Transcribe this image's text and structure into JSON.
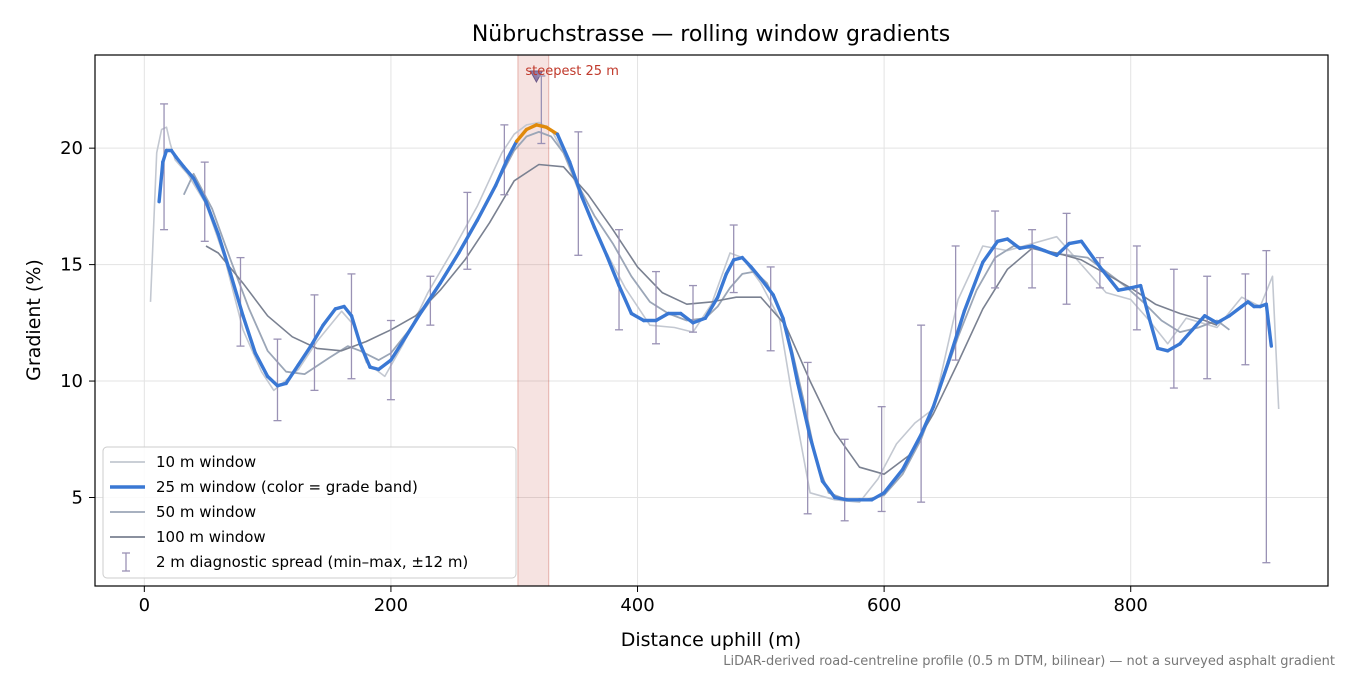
{
  "chart_data": {
    "type": "line",
    "title": "Nübruchstrasse — rolling window gradients",
    "xlabel": "Distance uphill (m)",
    "ylabel": "Gradient (%)",
    "xlim": [
      -40,
      960
    ],
    "ylim": [
      1.2,
      24.0
    ],
    "x_ticks": [
      0,
      200,
      400,
      600,
      800
    ],
    "x_tick_labels": [
      "0",
      "200",
      "400",
      "600",
      "800"
    ],
    "y_ticks": [
      5,
      10,
      15,
      20
    ],
    "y_tick_labels": [
      "5",
      "10",
      "15",
      "20"
    ],
    "grid": true,
    "legend_position": "lower-left",
    "footnote": "LiDAR-derived road-centreline profile (0.5 m DTM, bilinear) — not a surveyed asphalt gradient",
    "highlight": {
      "x_range": [
        303,
        328
      ],
      "label": "steepest 25 m",
      "marker_x": 318,
      "marker_y": 23.1
    },
    "series": [
      {
        "name": "10 m window",
        "color": "#c3c8d1",
        "x": [
          5,
          10,
          14,
          18,
          21,
          25,
          35,
          50,
          65,
          80,
          95,
          105,
          112,
          125,
          140,
          160,
          170,
          180,
          195,
          210,
          230,
          250,
          270,
          290,
          300,
          310,
          320,
          330,
          340,
          355,
          370,
          390,
          410,
          430,
          445,
          460,
          475,
          485,
          500,
          515,
          525,
          540,
          560,
          580,
          595,
          610,
          625,
          640,
          660,
          680,
          700,
          720,
          740,
          760,
          780,
          800,
          815,
          830,
          845,
          870,
          890,
          905,
          915,
          920
        ],
        "y": [
          13.4,
          19.8,
          20.8,
          20.9,
          20.2,
          19.5,
          18.9,
          17.6,
          15.3,
          12.2,
          10.4,
          9.6,
          9.9,
          10.5,
          11.7,
          13.0,
          12.4,
          10.8,
          10.2,
          11.6,
          13.8,
          15.6,
          17.5,
          19.8,
          20.6,
          21.0,
          21.1,
          20.8,
          19.8,
          17.8,
          16.0,
          14.0,
          12.4,
          12.3,
          12.1,
          13.3,
          15.5,
          15.3,
          14.2,
          12.7,
          9.5,
          5.2,
          4.9,
          4.8,
          5.8,
          7.3,
          8.2,
          8.8,
          13.5,
          15.8,
          15.6,
          15.9,
          16.2,
          15.0,
          13.8,
          13.5,
          12.6,
          11.6,
          12.7,
          12.3,
          13.6,
          13.2,
          14.5,
          8.8
        ]
      },
      {
        "name": "25 m window (color = grade band)",
        "color": "#3a78d4",
        "x": [
          12,
          15,
          18,
          22,
          26,
          32,
          40,
          50,
          60,
          70,
          80,
          90,
          100,
          108,
          115,
          125,
          135,
          145,
          155,
          162,
          168,
          175,
          183,
          190,
          200,
          212,
          225,
          240,
          255,
          270,
          285,
          295,
          302,
          310,
          318,
          326,
          335,
          345,
          355,
          365,
          375,
          385,
          395,
          405,
          415,
          425,
          435,
          445,
          455,
          465,
          472,
          478,
          485,
          492,
          500,
          510,
          518,
          525,
          530,
          540,
          550,
          560,
          570,
          580,
          590,
          600,
          615,
          630,
          640,
          652,
          665,
          680,
          692,
          700,
          710,
          720,
          730,
          740,
          750,
          760,
          775,
          790,
          800,
          808,
          815,
          822,
          830,
          840,
          850,
          860,
          870,
          880,
          890,
          895,
          900,
          905,
          910,
          914
        ],
        "y": [
          17.7,
          19.4,
          19.9,
          19.9,
          19.6,
          19.2,
          18.7,
          17.7,
          16.3,
          14.6,
          12.8,
          11.2,
          10.2,
          9.8,
          9.9,
          10.7,
          11.5,
          12.4,
          13.1,
          13.2,
          12.8,
          11.6,
          10.6,
          10.5,
          10.9,
          11.9,
          13.0,
          14.2,
          15.5,
          16.9,
          18.4,
          19.6,
          20.3,
          20.8,
          21.0,
          20.9,
          20.6,
          19.4,
          17.9,
          16.6,
          15.4,
          14.1,
          12.9,
          12.6,
          12.6,
          12.9,
          12.9,
          12.5,
          12.7,
          13.6,
          14.6,
          15.2,
          15.3,
          14.9,
          14.4,
          13.7,
          12.7,
          11.2,
          9.9,
          7.6,
          5.7,
          5.0,
          4.9,
          4.9,
          4.9,
          5.2,
          6.2,
          7.7,
          8.9,
          10.8,
          13.0,
          15.1,
          16.0,
          16.1,
          15.7,
          15.8,
          15.6,
          15.4,
          15.9,
          16.0,
          14.9,
          13.9,
          14.0,
          14.1,
          12.7,
          11.4,
          11.3,
          11.6,
          12.2,
          12.8,
          12.5,
          12.8,
          13.2,
          13.4,
          13.2,
          13.2,
          13.3,
          11.5
        ]
      },
      {
        "name": "50 m window",
        "color": "#9ba6b7",
        "x": [
          32,
          40,
          55,
          70,
          85,
          100,
          115,
          130,
          150,
          165,
          175,
          190,
          200,
          215,
          230,
          245,
          260,
          275,
          290,
          300,
          310,
          320,
          330,
          340,
          350,
          365,
          380,
          395,
          410,
          425,
          440,
          455,
          465,
          475,
          485,
          495,
          505,
          515,
          525,
          535,
          545,
          555,
          570,
          585,
          600,
          615,
          630,
          645,
          660,
          675,
          690,
          705,
          720,
          735,
          750,
          765,
          780,
          795,
          810,
          825,
          840,
          855,
          870,
          880
        ],
        "y": [
          18.0,
          18.9,
          17.4,
          15.2,
          13.1,
          11.3,
          10.4,
          10.3,
          11.0,
          11.5,
          11.3,
          10.9,
          11.2,
          12.2,
          13.3,
          14.6,
          15.9,
          17.4,
          18.9,
          19.9,
          20.5,
          20.7,
          20.5,
          19.8,
          18.6,
          17.1,
          15.9,
          14.5,
          13.4,
          12.9,
          12.6,
          12.7,
          13.2,
          14.0,
          14.6,
          14.7,
          14.2,
          13.1,
          11.4,
          9.1,
          6.6,
          5.2,
          4.9,
          4.9,
          5.1,
          6.0,
          7.5,
          9.6,
          11.9,
          13.9,
          15.3,
          15.8,
          15.7,
          15.5,
          15.4,
          15.3,
          14.7,
          14.1,
          13.4,
          12.6,
          12.1,
          12.3,
          12.6,
          12.2
        ]
      },
      {
        "name": "100 m window",
        "color": "#7a8191",
        "x": [
          50,
          60,
          80,
          100,
          120,
          140,
          160,
          180,
          200,
          220,
          240,
          260,
          280,
          300,
          320,
          340,
          360,
          380,
          400,
          420,
          440,
          460,
          480,
          500,
          520,
          540,
          560,
          580,
          600,
          620,
          640,
          660,
          680,
          700,
          720,
          740,
          760,
          780,
          800,
          820,
          840,
          860,
          870
        ],
        "y": [
          15.8,
          15.5,
          14.2,
          12.8,
          11.9,
          11.4,
          11.3,
          11.7,
          12.2,
          12.8,
          13.9,
          15.2,
          16.8,
          18.6,
          19.3,
          19.2,
          18.0,
          16.5,
          14.9,
          13.8,
          13.3,
          13.4,
          13.6,
          13.6,
          12.4,
          10.0,
          7.8,
          6.3,
          6.0,
          6.8,
          8.6,
          10.8,
          13.1,
          14.8,
          15.7,
          15.5,
          15.2,
          14.6,
          14.0,
          13.3,
          12.9,
          12.6,
          12.4
        ]
      },
      {
        "name": "2 m diagnostic spread (min–max, ±12 m)",
        "color": "#9a92b5",
        "x": [
          16,
          49,
          78,
          108,
          138,
          168,
          200,
          232,
          262,
          292,
          322,
          352,
          385,
          415,
          445,
          478,
          508,
          538,
          568,
          598,
          630,
          658,
          690,
          720,
          748,
          775,
          805,
          835,
          862,
          893,
          910
        ],
        "low": [
          16.5,
          16.0,
          11.5,
          8.3,
          9.6,
          10.1,
          9.2,
          12.4,
          14.8,
          18.0,
          20.2,
          15.4,
          12.2,
          11.6,
          12.1,
          13.8,
          11.3,
          4.3,
          4.0,
          4.4,
          4.8,
          10.9,
          14.0,
          14.0,
          13.3,
          14.0,
          12.2,
          9.7,
          10.1,
          10.7,
          2.2
        ],
        "high": [
          21.9,
          19.4,
          15.3,
          11.8,
          13.7,
          14.6,
          12.6,
          14.5,
          18.1,
          21.0,
          23.1,
          20.7,
          16.5,
          14.7,
          14.1,
          16.7,
          14.9,
          10.8,
          7.5,
          8.9,
          12.4,
          15.8,
          17.3,
          16.5,
          17.2,
          15.3,
          15.8,
          14.8,
          14.5,
          14.6,
          15.6
        ]
      }
    ]
  }
}
